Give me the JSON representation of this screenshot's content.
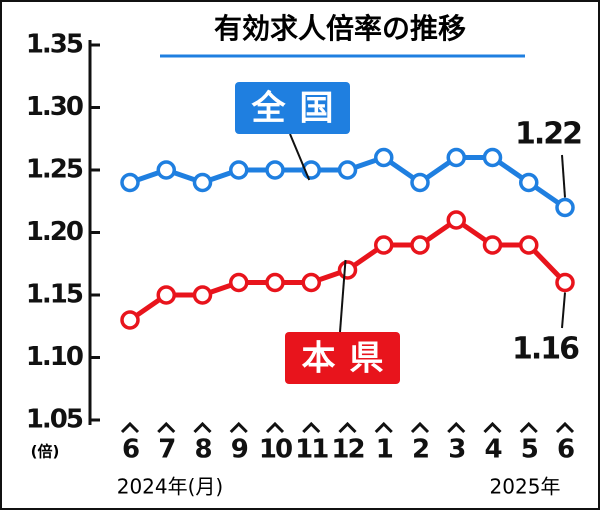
{
  "chart_data": {
    "type": "line",
    "title": "有効求人倍率の推移",
    "categories": [
      "6",
      "7",
      "8",
      "9",
      "10",
      "11",
      "12",
      "1",
      "2",
      "3",
      "4",
      "5",
      "6"
    ],
    "series": [
      {
        "name": "全国",
        "color": "#1f7fe0",
        "values": [
          1.24,
          1.25,
          1.24,
          1.25,
          1.25,
          1.25,
          1.25,
          1.26,
          1.24,
          1.26,
          1.26,
          1.24,
          1.22
        ]
      },
      {
        "name": "本県",
        "color": "#e8141c",
        "values": [
          1.13,
          1.15,
          1.15,
          1.16,
          1.16,
          1.16,
          1.17,
          1.19,
          1.19,
          1.21,
          1.19,
          1.19,
          1.16
        ]
      }
    ],
    "ylim": [
      1.05,
      1.35
    ],
    "yticks": [
      1.05,
      {
        "value": 1.1,
        "label": "1.10"
      },
      1.15,
      {
        "value": 1.2,
        "label": "1.20"
      },
      1.25,
      {
        "value": 1.3,
        "label": "1.30"
      },
      1.35
    ],
    "y_unit": "(倍)",
    "x_label_start": "2024年(月)",
    "x_label_end": "2025年",
    "grid": false
  }
}
